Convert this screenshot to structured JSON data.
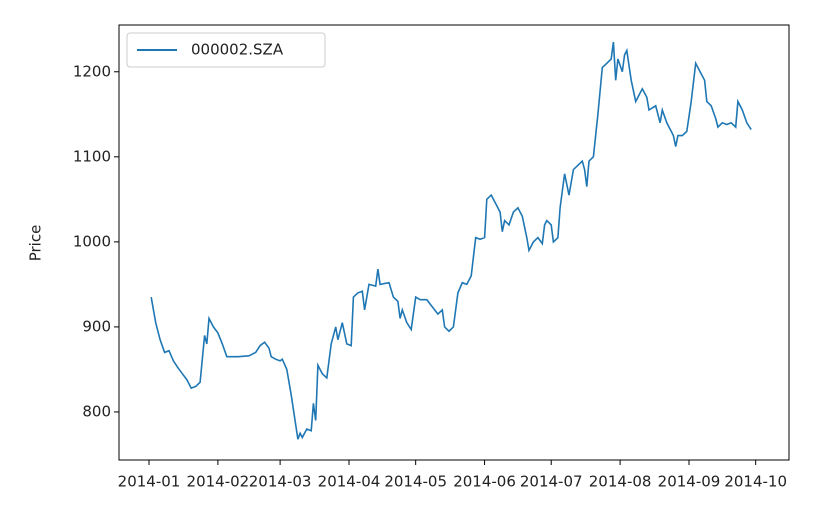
{
  "chart_data": {
    "type": "line",
    "ylabel": "Price",
    "x": [
      1,
      3,
      5,
      7,
      9,
      11,
      13,
      15,
      17,
      19,
      21,
      23,
      25,
      26,
      27,
      29,
      31,
      33,
      35,
      40,
      45,
      48,
      50,
      52,
      54,
      55,
      57,
      59,
      60,
      62,
      64,
      66,
      67,
      68,
      69,
      71,
      73,
      74,
      75,
      76,
      78,
      80,
      82,
      84,
      85,
      87,
      89,
      91,
      92,
      94,
      96,
      97,
      99,
      102,
      103,
      104,
      108,
      110,
      112,
      113,
      114,
      116,
      118,
      120,
      122,
      125,
      130,
      132,
      133,
      135,
      137,
      139,
      141,
      143,
      145,
      147,
      149,
      151,
      152,
      154,
      156,
      158,
      159,
      160,
      162,
      164,
      166,
      168,
      170,
      171,
      172,
      173,
      175,
      177,
      178,
      179,
      181,
      182,
      184,
      185,
      187,
      189,
      191,
      193,
      195,
      196,
      197,
      198,
      200,
      202,
      204,
      206,
      208,
      209,
      210,
      211,
      213,
      214,
      215,
      217,
      219,
      221,
      222,
      224,
      225,
      228,
      230,
      231,
      233,
      235,
      236,
      237,
      238,
      240,
      242,
      244,
      246,
      248,
      250,
      251,
      253,
      255,
      256,
      258,
      260,
      262,
      264,
      265,
      267,
      269,
      271
    ],
    "series": [
      {
        "name": "000002.SZA",
        "color": "#1f77b4",
        "values": [
          935,
          905,
          885,
          870,
          872,
          860,
          852,
          845,
          838,
          828,
          830,
          835,
          890,
          880,
          910,
          900,
          893,
          880,
          865,
          865,
          866,
          870,
          878,
          882,
          875,
          865,
          862,
          860,
          862,
          850,
          820,
          785,
          768,
          775,
          770,
          780,
          778,
          810,
          790,
          855,
          845,
          840,
          880,
          900,
          885,
          905,
          880,
          878,
          935,
          940,
          942,
          920,
          950,
          948,
          968,
          950,
          952,
          935,
          930,
          910,
          920,
          905,
          897,
          935,
          932,
          932,
          915,
          920,
          900,
          895,
          900,
          940,
          952,
          950,
          960,
          1005,
          1003,
          1005,
          1050,
          1055,
          1045,
          1035,
          1012,
          1025,
          1020,
          1035,
          1040,
          1030,
          1005,
          990,
          995,
          1000,
          1005,
          998,
          1020,
          1025,
          1020,
          1000,
          1005,
          1040,
          1080,
          1055,
          1085,
          1090,
          1095,
          1085,
          1065,
          1095,
          1100,
          1150,
          1205,
          1210,
          1215,
          1235,
          1190,
          1215,
          1200,
          1220,
          1225,
          1190,
          1165,
          1175,
          1180,
          1170,
          1155,
          1160,
          1140,
          1155,
          1140,
          1130,
          1125,
          1112,
          1125,
          1125,
          1130,
          1165,
          1210,
          1200,
          1190,
          1165,
          1160,
          1145,
          1135,
          1140,
          1138,
          1140,
          1135,
          1165,
          1155,
          1140,
          1132
        ]
      }
    ],
    "xlim": [
      -13.5,
      288
    ],
    "xticks": [
      {
        "value": 0,
        "label": "2014-01"
      },
      {
        "value": 31,
        "label": "2014-02"
      },
      {
        "value": 59,
        "label": "2014-03"
      },
      {
        "value": 90,
        "label": "2014-04"
      },
      {
        "value": 120,
        "label": "2014-05"
      },
      {
        "value": 151,
        "label": "2014-06"
      },
      {
        "value": 181,
        "label": "2014-07"
      },
      {
        "value": 212,
        "label": "2014-08"
      },
      {
        "value": 243,
        "label": "2014-09"
      },
      {
        "value": 273,
        "label": "2014-10"
      }
    ],
    "ylim": [
      743.5,
      1255
    ],
    "yticks": [
      800,
      900,
      1000,
      1100,
      1200
    ],
    "legend": "upper left",
    "grid": false
  }
}
